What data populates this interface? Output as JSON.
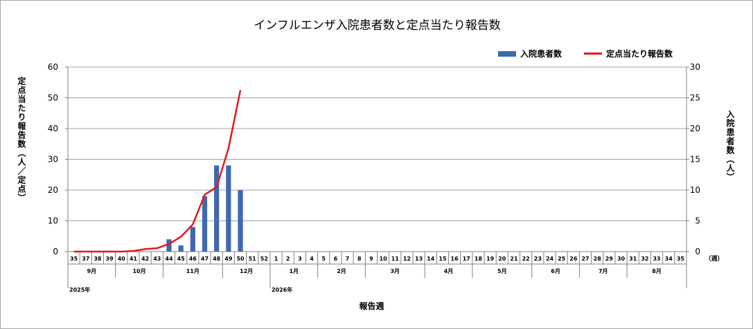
{
  "chart_data": {
    "type": "bar+line",
    "title": "インフルエンザ入院患者数と定点当たり報告数",
    "xlabel": "報告週",
    "ylabel_left": "定点当たり報告数（人／定点）",
    "ylabel_right": "入院患者数（人）",
    "ylim_left": [
      0,
      60
    ],
    "yticks_left": [
      0,
      10,
      20,
      30,
      40,
      50,
      60
    ],
    "ylim_right": [
      0,
      30
    ],
    "yticks_right": [
      0,
      5,
      10,
      15,
      20,
      25,
      30
    ],
    "x_unit_label": "（週）",
    "weeks": [
      "35",
      "37",
      "38",
      "39",
      "40",
      "41",
      "42",
      "43",
      "44",
      "45",
      "46",
      "47",
      "48",
      "49",
      "50",
      "51",
      "52",
      "1",
      "2",
      "3",
      "4",
      "5",
      "6",
      "7",
      "8",
      "9",
      "10",
      "11",
      "12",
      "13",
      "14",
      "15",
      "16",
      "17",
      "18",
      "19",
      "20",
      "21",
      "22",
      "23",
      "24",
      "25",
      "26",
      "27",
      "28",
      "29",
      "30",
      "31",
      "32",
      "33",
      "34",
      "35"
    ],
    "months": [
      {
        "label": "9月",
        "start": 0,
        "end": 4
      },
      {
        "label": "10月",
        "start": 4,
        "end": 8
      },
      {
        "label": "11月",
        "start": 8,
        "end": 13
      },
      {
        "label": "12月",
        "start": 13,
        "end": 17
      },
      {
        "label": "1月",
        "start": 17,
        "end": 21
      },
      {
        "label": "2月",
        "start": 21,
        "end": 25
      },
      {
        "label": "3月",
        "start": 25,
        "end": 30
      },
      {
        "label": "4月",
        "start": 30,
        "end": 34
      },
      {
        "label": "5月",
        "start": 34,
        "end": 39
      },
      {
        "label": "6月",
        "start": 39,
        "end": 43
      },
      {
        "label": "7月",
        "start": 43,
        "end": 47
      },
      {
        "label": "8月",
        "start": 47,
        "end": 52
      }
    ],
    "years": [
      {
        "label": "2025年",
        "index": 0
      },
      {
        "label": "2026年",
        "index": 17
      }
    ],
    "series": [
      {
        "name": "入院患者数",
        "type": "bar",
        "axis": "right",
        "color": "#3f68b0",
        "values": [
          null,
          null,
          null,
          null,
          null,
          null,
          null,
          null,
          2,
          1,
          4,
          9,
          14,
          14,
          10,
          null,
          null,
          null,
          null,
          null,
          null,
          null,
          null,
          null,
          null,
          null,
          null,
          null,
          null,
          null,
          null,
          null,
          null,
          null,
          null,
          null,
          null,
          null,
          null,
          null,
          null,
          null,
          null,
          null,
          null,
          null,
          null,
          null,
          null,
          null,
          null,
          null
        ]
      },
      {
        "name": "定点当たり報告数",
        "type": "line",
        "axis": "left",
        "color": "#e8161b",
        "values": [
          0.0,
          0.0,
          0.0,
          0.0,
          0.0,
          0.2,
          0.8,
          1.1,
          2.5,
          4.8,
          8.8,
          18.5,
          21.0,
          33.5,
          52.5,
          null,
          null,
          null,
          null,
          null,
          null,
          null,
          null,
          null,
          null,
          null,
          null,
          null,
          null,
          null,
          null,
          null,
          null,
          null,
          null,
          null,
          null,
          null,
          null,
          null,
          null,
          null,
          null,
          null,
          null,
          null,
          null,
          null,
          null,
          null,
          null,
          null
        ]
      }
    ],
    "grid": "horizontal",
    "legend_position": "top-right"
  }
}
